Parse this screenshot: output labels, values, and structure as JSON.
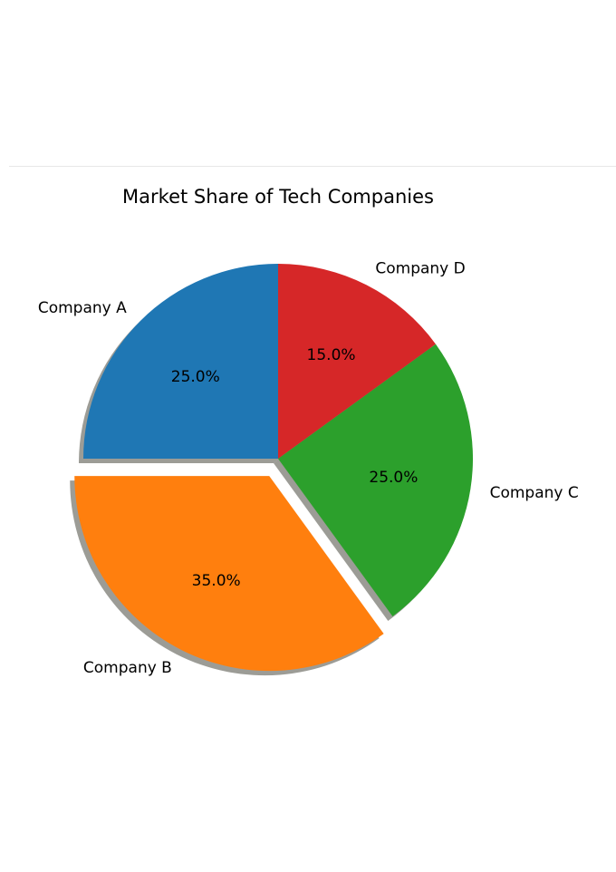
{
  "chart_data": {
    "type": "pie",
    "title": "Market Share of Tech Companies",
    "categories": [
      "Company A",
      "Company B",
      "Company C",
      "Company D"
    ],
    "values": [
      25,
      35,
      25,
      15
    ],
    "percent_labels": [
      "25.0%",
      "35.0%",
      "25.0%",
      "15.0%"
    ],
    "colors": [
      "#1f77b4",
      "#ff7f0e",
      "#2ca02c",
      "#d62728"
    ],
    "explode": [
      0,
      0.1,
      0,
      0
    ],
    "start_angle": 90,
    "direction": "counterclockwise",
    "shadow": true
  }
}
